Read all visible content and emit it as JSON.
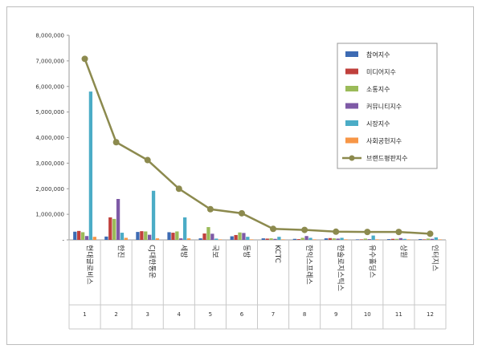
{
  "chart_data": {
    "type": "bar",
    "title": "",
    "xlabel": "",
    "ylabel": "",
    "ylim": [
      0,
      8000000
    ],
    "y_ticks": [
      "-",
      "1,000,000",
      "2,000,000",
      "3,000,000",
      "4,000,000",
      "5,000,000",
      "6,000,000",
      "7,000,000",
      "8,000,000"
    ],
    "categories": [
      "현대글로비스",
      "한진",
      "CJ대한통운",
      "세방",
      "국보",
      "동방",
      "KCTC",
      "한익스프레스",
      "한솔로지스틱스",
      "유수홀딩스",
      "상원",
      "인터지스"
    ],
    "ranks": [
      "1",
      "2",
      "3",
      "4",
      "5",
      "6",
      "7",
      "8",
      "9",
      "10",
      "11",
      "12"
    ],
    "legend_position": "right",
    "grid": false,
    "series": [
      {
        "name": "참여지수",
        "kind": "bar",
        "color": "#3d6bb3",
        "values": [
          320000,
          130000,
          310000,
          300000,
          60000,
          140000,
          60000,
          40000,
          60000,
          20000,
          30000,
          30000
        ]
      },
      {
        "name": "미디어지수",
        "kind": "bar",
        "color": "#c0403c",
        "values": [
          350000,
          880000,
          340000,
          280000,
          250000,
          190000,
          50000,
          30000,
          70000,
          20000,
          40000,
          20000
        ]
      },
      {
        "name": "소통지수",
        "kind": "bar",
        "color": "#9bbb59",
        "values": [
          300000,
          820000,
          330000,
          330000,
          500000,
          290000,
          60000,
          80000,
          60000,
          50000,
          40000,
          50000
        ]
      },
      {
        "name": "커뮤니티지수",
        "kind": "bar",
        "color": "#7e5aa6",
        "values": [
          150000,
          1600000,
          200000,
          60000,
          240000,
          270000,
          40000,
          150000,
          50000,
          30000,
          70000,
          40000
        ]
      },
      {
        "name": "시장지수",
        "kind": "bar",
        "color": "#4bacc6",
        "values": [
          5800000,
          280000,
          1920000,
          880000,
          50000,
          120000,
          120000,
          80000,
          80000,
          170000,
          40000,
          100000
        ]
      },
      {
        "name": "사회공헌지수",
        "kind": "bar",
        "color": "#f79646",
        "values": [
          120000,
          80000,
          60000,
          60000,
          20000,
          20000,
          20000,
          20000,
          20000,
          20000,
          20000,
          20000
        ]
      },
      {
        "name": "브랜드평판지수",
        "kind": "line",
        "color": "#8c8a4e",
        "values": [
          7080000,
          3820000,
          3120000,
          2000000,
          1200000,
          1040000,
          430000,
          390000,
          320000,
          310000,
          310000,
          240000
        ]
      }
    ]
  }
}
